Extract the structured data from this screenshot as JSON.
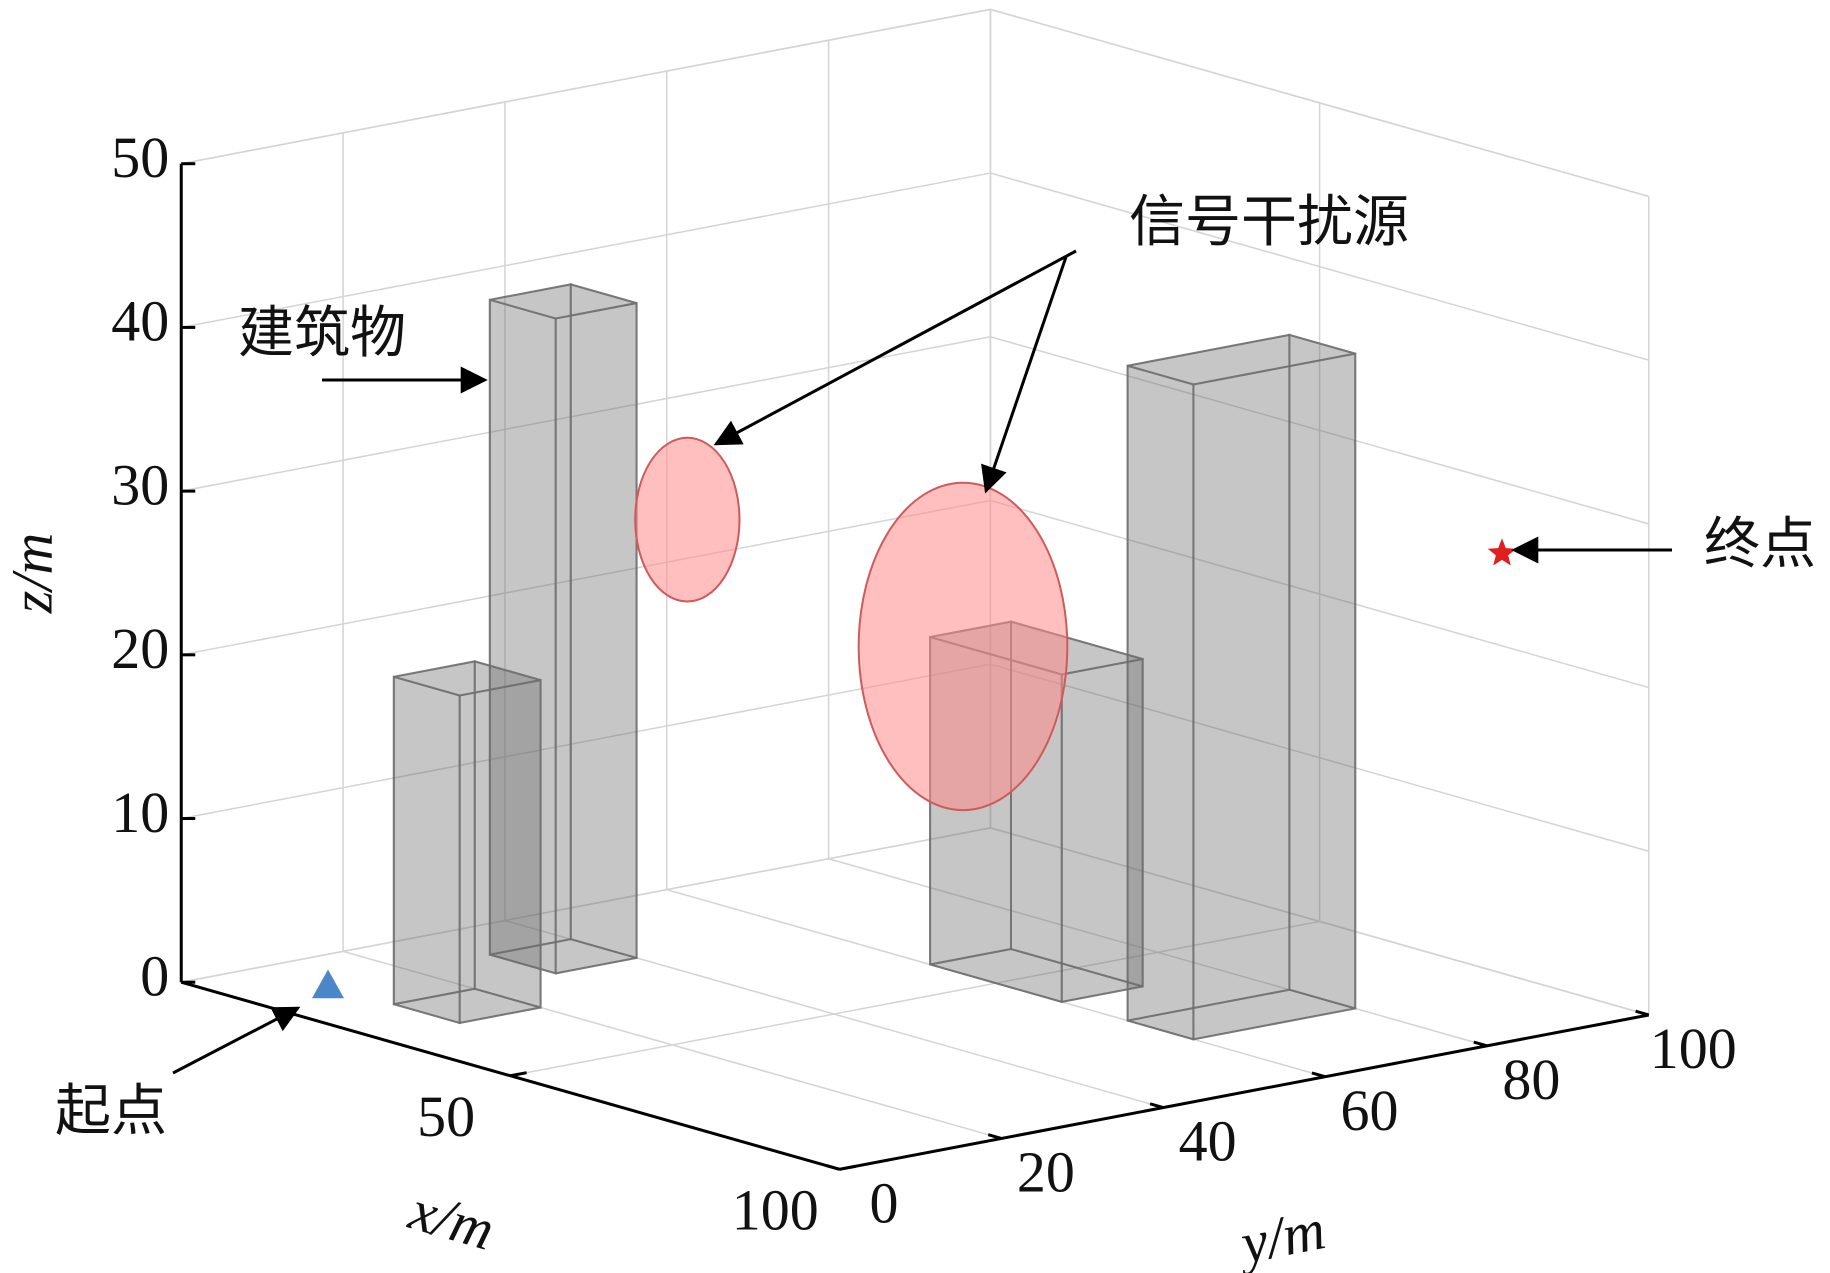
{
  "chart_data": {
    "type": "scatter3d",
    "xlabel": "x/m",
    "ylabel": "y/m",
    "zlabel": "z/m",
    "xlim": [
      0,
      100
    ],
    "ylim": [
      0,
      100
    ],
    "zlim": [
      0,
      50
    ],
    "xticks": [
      50,
      100
    ],
    "yticks": [
      0,
      20,
      40,
      60,
      80,
      100
    ],
    "zticks": [
      0,
      10,
      20,
      30,
      40,
      50
    ],
    "grid": true,
    "buildings": [
      {
        "x": [
          10,
          20
        ],
        "y": [
          30,
          40
        ],
        "height": 40
      },
      {
        "x": [
          20,
          30
        ],
        "y": [
          10,
          20
        ],
        "height": 20
      },
      {
        "x": [
          40,
          60
        ],
        "y": [
          60,
          70
        ],
        "height": 20
      },
      {
        "x": [
          70,
          80
        ],
        "y": [
          60,
          80
        ],
        "height": 40
      }
    ],
    "building_color": "#6e6e6e",
    "interference_sources": [
      {
        "center": [
          40,
          30,
          30
        ],
        "radius": 5
      },
      {
        "center": [
          45,
          60,
          20
        ],
        "radius": 10
      }
    ],
    "source_color": "#ff8a8a",
    "start": [
      10,
      10,
      0
    ],
    "start_color": "#4a86c8",
    "end": [
      90,
      90,
      28
    ],
    "end_color": "#e02020",
    "annotations": {
      "building": "建筑物",
      "interference": "信号干扰源",
      "start": "起点",
      "end": "终点"
    }
  }
}
